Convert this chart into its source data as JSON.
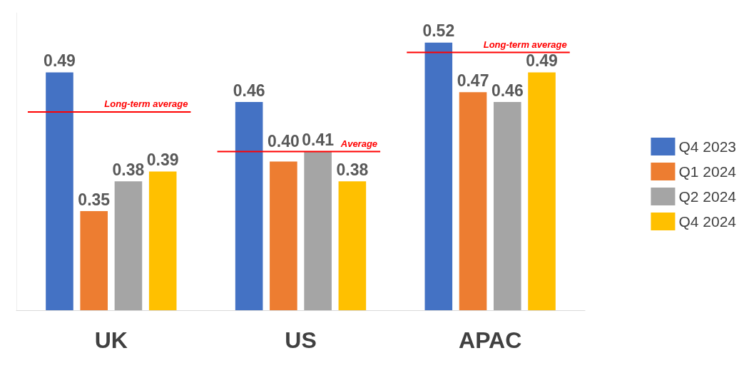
{
  "chart_data": {
    "type": "bar",
    "categories": [
      "UK",
      "US",
      "APAC"
    ],
    "series": [
      {
        "name": "Q4 2023",
        "color": "#4472c4",
        "values": [
          0.49,
          0.46,
          0.52
        ]
      },
      {
        "name": "Q1 2024",
        "color": "#ed7d31",
        "values": [
          0.35,
          0.4,
          0.47
        ],
        "value_labels": [
          "0.35",
          "0.40",
          "0.47"
        ]
      },
      {
        "name": "Q2 2024",
        "color": "#a5a5a5",
        "values": [
          0.38,
          0.41,
          0.46
        ]
      },
      {
        "name": "Q4 2024",
        "color": "#ffc000",
        "values": [
          0.39,
          0.38,
          0.49
        ]
      }
    ],
    "ylim": [
      0.25,
      0.55
    ],
    "tick_labels": "x",
    "data_labels": true,
    "legend": "right",
    "ref_lines": [
      {
        "axis": "y",
        "value": 0.45,
        "label": "Long-term average",
        "color": "#ff0000"
      },
      {
        "axis": "y",
        "value": 0.41,
        "label": "Average",
        "color": "#ff0000"
      },
      {
        "axis": "y",
        "value": 0.51,
        "label": "Long-term average",
        "color": "#ff0000"
      }
    ]
  }
}
